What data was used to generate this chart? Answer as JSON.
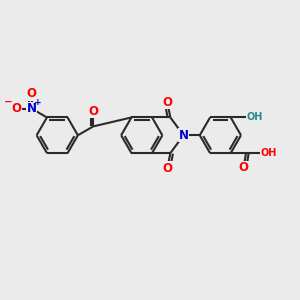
{
  "background_color": "#ebebeb",
  "bond_color": "#2a2a2a",
  "bond_width": 1.5,
  "atom_colors": {
    "O": "#ff0000",
    "N": "#0000cc",
    "H": "#2a8a8a",
    "C": "#2a2a2a"
  },
  "font_size_atom": 8.5,
  "font_size_small": 7.0,
  "figsize": [
    3.0,
    3.0
  ],
  "dpi": 100
}
